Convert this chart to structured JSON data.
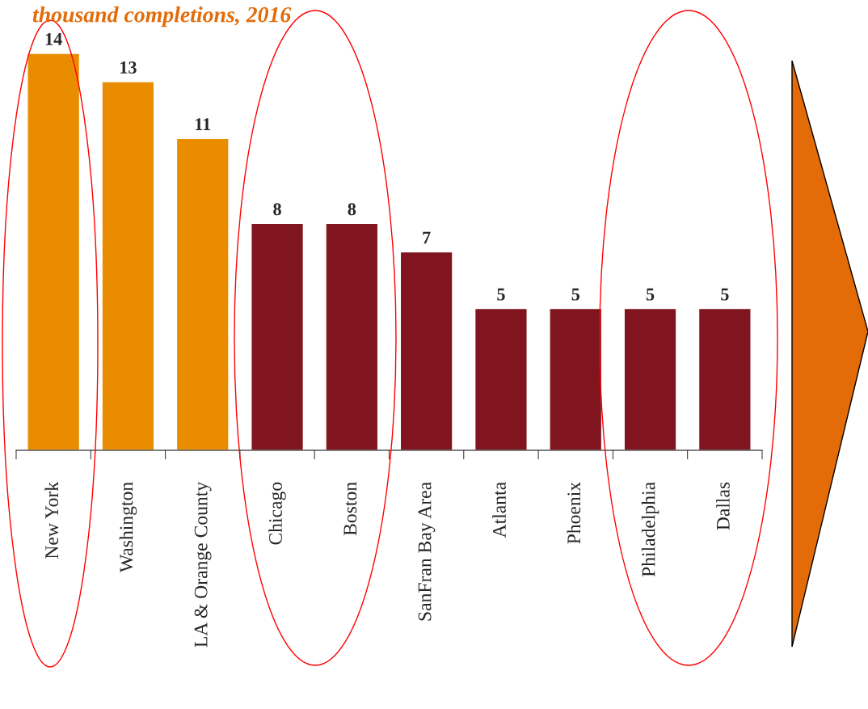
{
  "chart_data": {
    "type": "bar",
    "title": "thousand completions, 2016",
    "categories": [
      "New York",
      "Washington",
      "LA & Orange County",
      "Chicago",
      "Boston",
      "SanFran Bay Area",
      "Atlanta",
      "Phoenix",
      "Philadelphia",
      "Dallas"
    ],
    "values": [
      14,
      13,
      11,
      8,
      8,
      7,
      5,
      5,
      5,
      5
    ],
    "colors": [
      "#ea8c00",
      "#ea8c00",
      "#ea8c00",
      "#80151f",
      "#80151f",
      "#80151f",
      "#80151f",
      "#80151f",
      "#80151f",
      "#80151f"
    ],
    "data_labels": true,
    "grid": false,
    "legend": false
  }
}
